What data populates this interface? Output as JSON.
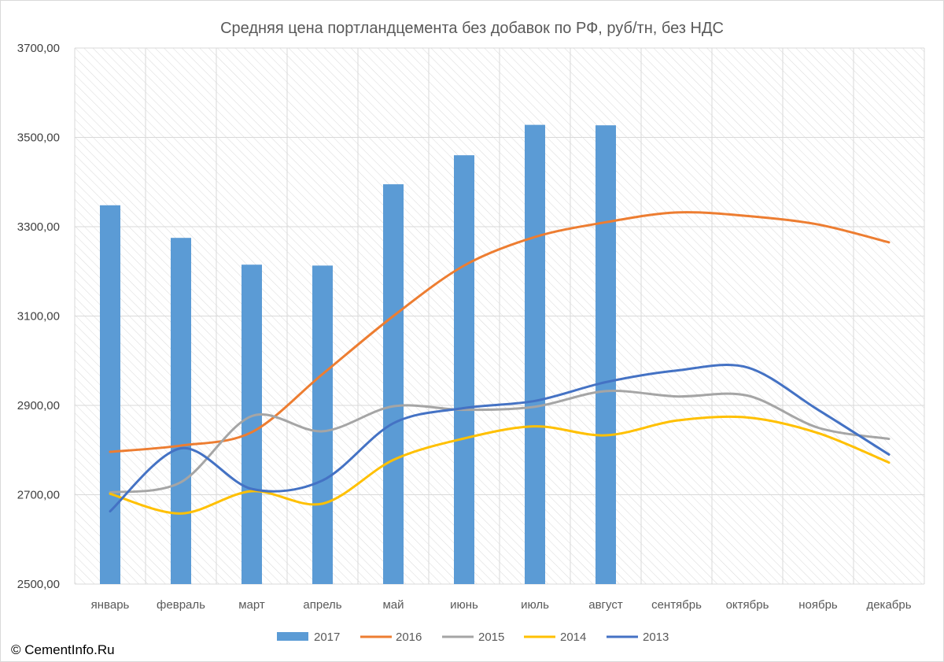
{
  "copyright": "© CementInfo.Ru",
  "chart_data": {
    "type": "bar",
    "title": "Средняя цена портландцемента без добавок по РФ, руб/тн, без НДС",
    "xlabel": "",
    "ylabel": "",
    "categories": [
      "январь",
      "февраль",
      "март",
      "апрель",
      "май",
      "июнь",
      "июль",
      "август",
      "сентябрь",
      "октябрь",
      "ноябрь",
      "декабрь"
    ],
    "ylim": [
      2500,
      3700
    ],
    "yticks": [
      2500,
      2700,
      2900,
      3100,
      3300,
      3500,
      3700
    ],
    "ytick_labels": [
      "2500,00",
      "2700,00",
      "2900,00",
      "3100,00",
      "3300,00",
      "3500,00",
      "3700,00"
    ],
    "grid": true,
    "legend": "bottom",
    "series": [
      {
        "name": "2017",
        "kind": "bar",
        "color": "#5B9BD5",
        "values": [
          3348,
          3275,
          3215,
          3213,
          3395,
          3460,
          3528,
          3527,
          null,
          null,
          null,
          null
        ]
      },
      {
        "name": "2016",
        "kind": "line",
        "color": "#ED7D31",
        "values": [
          2796,
          2810,
          2840,
          2970,
          3100,
          3213,
          3277,
          3310,
          3332,
          3324,
          3305,
          3265
        ]
      },
      {
        "name": "2015",
        "kind": "line",
        "color": "#A5A5A5",
        "values": [
          2705,
          2728,
          2876,
          2842,
          2898,
          2890,
          2897,
          2932,
          2920,
          2922,
          2850,
          2825
        ]
      },
      {
        "name": "2014",
        "kind": "line",
        "color": "#FFC000",
        "values": [
          2702,
          2658,
          2708,
          2680,
          2778,
          2826,
          2853,
          2833,
          2866,
          2873,
          2838,
          2772
        ]
      },
      {
        "name": "2013",
        "kind": "line",
        "color": "#4472C4",
        "values": [
          2663,
          2804,
          2713,
          2732,
          2860,
          2894,
          2910,
          2952,
          2978,
          2985,
          2890,
          2790
        ]
      }
    ]
  }
}
